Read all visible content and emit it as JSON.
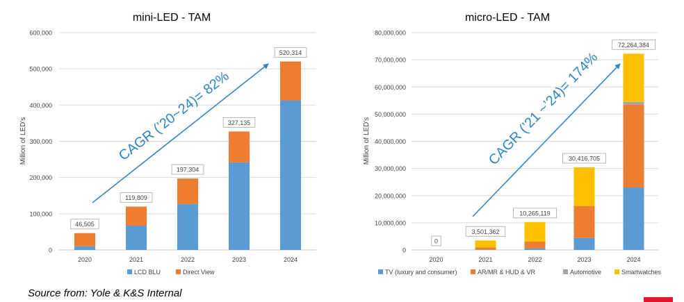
{
  "colors": {
    "lcd_blu": "#5B9BD5",
    "direct_view": "#ED7D31",
    "tv": "#5B9BD5",
    "ar_mr": "#ED7D31",
    "automotive": "#A5A5A5",
    "smartwatches": "#FFC000",
    "arrow": "#2E86C1",
    "brand": "#E3162B"
  },
  "source_note": "Source from: Yole & K&S Internal",
  "chart_data": [
    {
      "type": "bar",
      "stacked": true,
      "title": "mini-LED - TAM",
      "ylabel": "Million of LED's",
      "categories": [
        "2020",
        "2021",
        "2022",
        "2023",
        "2024"
      ],
      "ylim": [
        0,
        600000
      ],
      "yticks": [
        0,
        100000,
        200000,
        300000,
        400000,
        500000,
        600000
      ],
      "ytick_labels": [
        "0",
        "100,000",
        "200,000",
        "300,000",
        "400,000",
        "500,000",
        "600,000"
      ],
      "series": [
        {
          "name": "LCD BLU",
          "color": "#5B9BD5",
          "values": [
            10000,
            67000,
            127000,
            242000,
            413000
          ]
        },
        {
          "name": "Direct View",
          "color": "#ED7D31",
          "values": [
            36505,
            52809,
            70304,
            85135,
            107314
          ]
        }
      ],
      "totals": [
        46505,
        119809,
        197304,
        327135,
        520314
      ],
      "total_labels": [
        "46,505",
        "119,809",
        "197,304",
        "327,135",
        "520,314"
      ],
      "annotation": "CAGR (’20~24)= 82%",
      "legend_position": "bottom",
      "grid": true
    },
    {
      "type": "bar",
      "stacked": true,
      "title": "micro-LED - TAM",
      "ylabel": "Million of LED's",
      "categories": [
        "2020",
        "2021",
        "2022",
        "2023",
        "2024"
      ],
      "ylim": [
        0,
        80000000
      ],
      "yticks": [
        0,
        10000000,
        20000000,
        30000000,
        40000000,
        50000000,
        60000000,
        70000000,
        80000000
      ],
      "ytick_labels": [
        "0",
        "10,000,000",
        "20,000,000",
        "30,000,000",
        "40,000,000",
        "50,000,000",
        "60,000,000",
        "70,000,000",
        "80,000,000"
      ],
      "series": [
        {
          "name": "TV (luxury and consumer)",
          "color": "#5B9BD5",
          "values": [
            0,
            150000,
            600000,
            4400000,
            23000000
          ]
        },
        {
          "name": "AR/MR & HUD & VR",
          "color": "#ED7D31",
          "values": [
            0,
            750000,
            2500000,
            11800000,
            30500000
          ]
        },
        {
          "name": "Automotive",
          "color": "#A5A5A5",
          "values": [
            0,
            0,
            0,
            0,
            1000000
          ]
        },
        {
          "name": "Smartwatches",
          "color": "#FFC000",
          "values": [
            0,
            2601362,
            7165119,
            14216705,
            17764384
          ]
        }
      ],
      "totals": [
        0,
        3501362,
        10265119,
        30416705,
        72264384
      ],
      "total_labels": [
        "0",
        "3,501,362",
        "10,265,119",
        "30,416,705",
        "72,264,384"
      ],
      "annotation": "CAGR (’21 ~’24)= 174%",
      "legend_position": "bottom",
      "grid": true
    }
  ]
}
